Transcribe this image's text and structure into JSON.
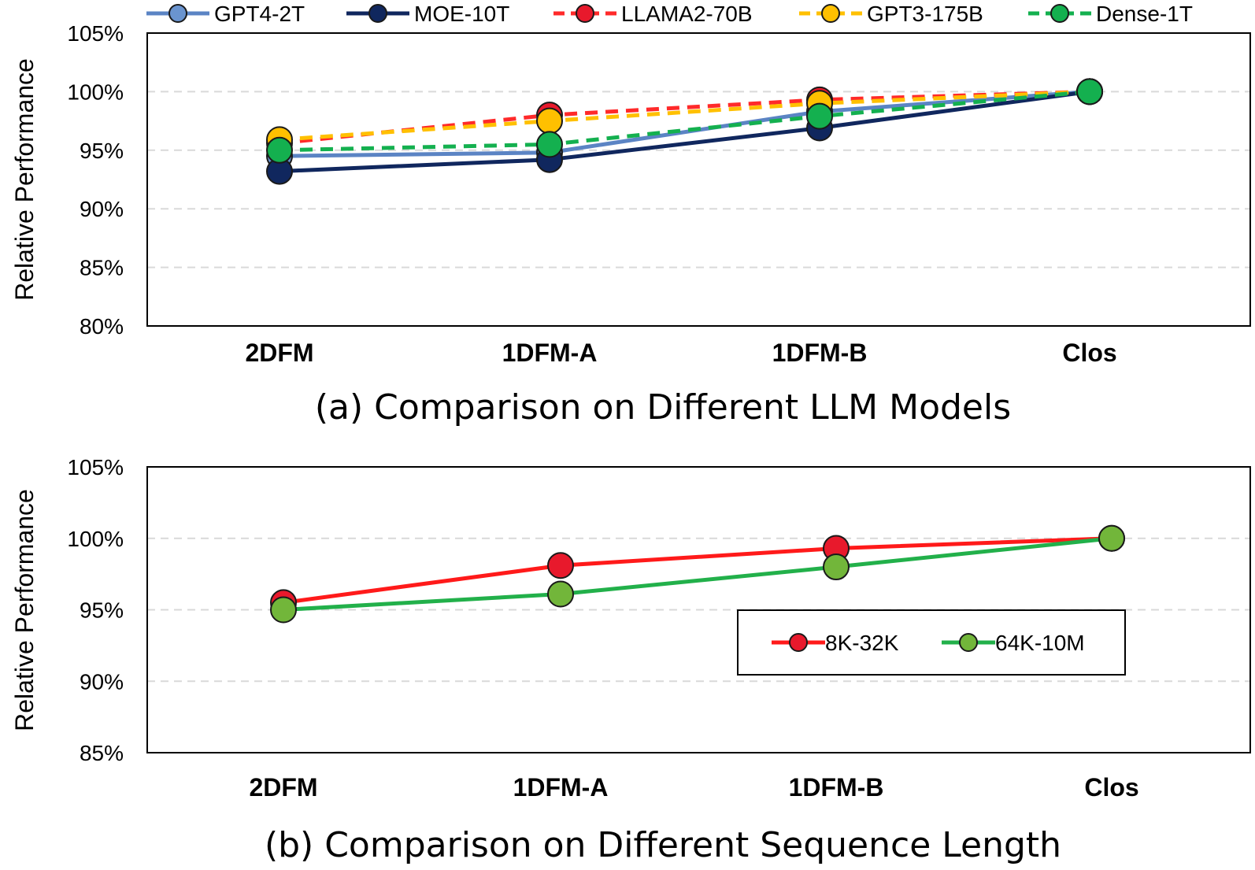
{
  "chart_data": [
    {
      "type": "line",
      "title": "(a)  Comparison on Different LLM Models",
      "xlabel": "",
      "ylabel": "Relative Performance",
      "ylim": [
        80,
        105
      ],
      "yticks": [
        "80%",
        "85%",
        "90%",
        "95%",
        "100%",
        "105%"
      ],
      "categories": [
        "2DFM",
        "1DFM-A",
        "1DFM-B",
        "Clos"
      ],
      "grid": true,
      "legend": "top",
      "series": [
        {
          "name": "GPT4-2T",
          "values": [
            94.5,
            94.8,
            98.3,
            100
          ],
          "color": "#5b84c4",
          "marker": "#6a94cf",
          "dashed": false
        },
        {
          "name": "MOE-10T",
          "values": [
            93.2,
            94.2,
            96.9,
            100
          ],
          "color": "#10275e",
          "marker": "#10275e",
          "dashed": false
        },
        {
          "name": "LLAMA2-70B",
          "values": [
            95.6,
            98.0,
            99.3,
            100
          ],
          "color": "#ff2a2a",
          "marker": "#e8192c",
          "dashed": true
        },
        {
          "name": "GPT3-175B",
          "values": [
            95.9,
            97.5,
            99.0,
            100
          ],
          "color": "#ffc000",
          "marker": "#ffc000",
          "dashed": true
        },
        {
          "name": "Dense-1T",
          "values": [
            95.0,
            95.5,
            97.9,
            100
          ],
          "color": "#14b04f",
          "marker": "#14b04f",
          "dashed": true
        }
      ]
    },
    {
      "type": "line",
      "title": "(b)  Comparison on Different Sequence Length",
      "xlabel": "",
      "ylabel": "Relative Performance",
      "ylim": [
        85,
        105
      ],
      "yticks": [
        "85%",
        "90%",
        "95%",
        "100%",
        "105%"
      ],
      "categories": [
        "2DFM",
        "1DFM-A",
        "1DFM-B",
        "Clos"
      ],
      "grid": true,
      "legend": "lower-right",
      "series": [
        {
          "name": "8K-32K",
          "values": [
            95.5,
            98.1,
            99.3,
            100
          ],
          "color": "#ff1a1a",
          "marker": "#e8192c",
          "dashed": false
        },
        {
          "name": "64K-10M",
          "values": [
            95.0,
            96.1,
            98.0,
            100
          ],
          "color": "#22b04a",
          "marker": "#72b63a",
          "dashed": false
        }
      ]
    }
  ]
}
